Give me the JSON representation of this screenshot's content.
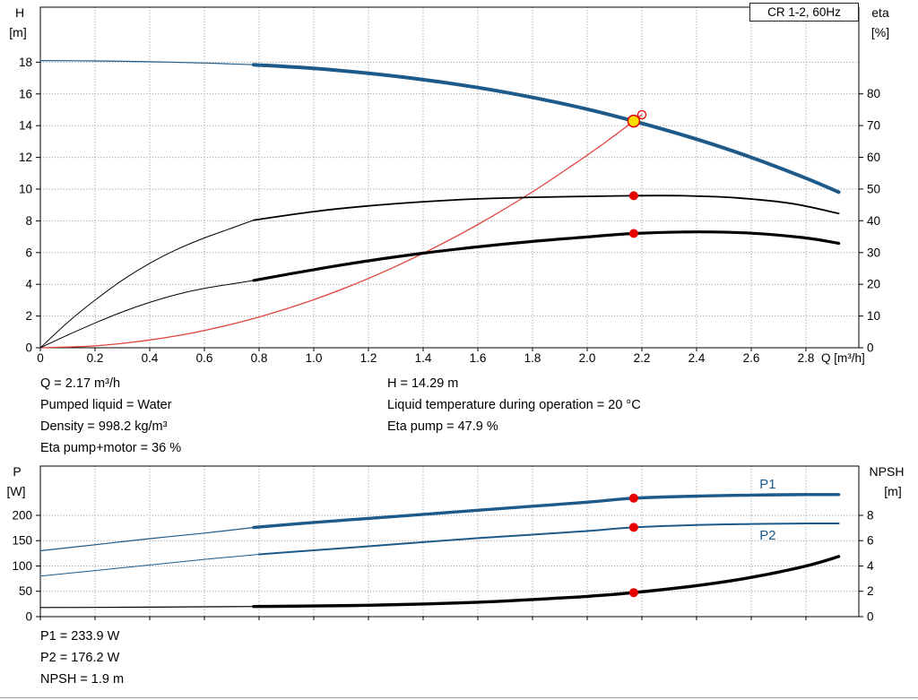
{
  "header": {
    "model": "CR 1-2, 60Hz"
  },
  "colors": {
    "curve_blue": "#1d5a8a",
    "curve_black": "#000000",
    "system_red": "#e0433a",
    "dot_red": "#e60000",
    "duty_yellow": "#ffdf00"
  },
  "info_top_left": [
    "Q = 2.17 m³/h",
    "Pumped liquid = Water",
    "Density = 998.2 kg/m³",
    "Eta pump+motor = 36 %"
  ],
  "info_top_right": [
    "H = 14.29 m",
    "Liquid temperature during operation = 20 °C",
    "Eta pump = 47.9 %"
  ],
  "info_bottom": [
    "P1 = 233.9 W",
    "P2 = 176.2 W",
    "NPSH = 1.9 m"
  ],
  "chart_data": [
    {
      "id": "chart-top",
      "type": "line",
      "title": "CR 1-2, 60Hz",
      "x_axis": {
        "label": "Q [m³/h]",
        "min": 0,
        "max": 2.9934,
        "ticks": [
          0,
          0.2,
          0.4,
          0.6,
          0.8,
          1.0,
          1.2,
          1.4,
          1.6,
          1.8,
          2.0,
          2.2,
          2.4,
          2.6,
          2.8
        ],
        "tick_labels": [
          "0",
          "0.2",
          "0.4",
          "0.6",
          "0.8",
          "1.0",
          "1.2",
          "1.4",
          "1.6",
          "1.8",
          "2.0",
          "2.2",
          "2.4",
          "2.6",
          "2.8"
        ]
      },
      "y_left": {
        "title": [
          "H",
          "[m]"
        ],
        "min": 0,
        "max": 21.47,
        "ticks": [
          0,
          2,
          4,
          6,
          8,
          10,
          12,
          14,
          16,
          18
        ],
        "tick_labels": [
          "0",
          "2",
          "4",
          "6",
          "8",
          "10",
          "12",
          "14",
          "16",
          "18"
        ]
      },
      "y_right": {
        "title": [
          "eta",
          "[%]"
        ],
        "min": 0,
        "max": 107.3,
        "ticks": [
          0,
          10,
          20,
          30,
          40,
          50,
          60,
          70,
          80
        ],
        "tick_labels": [
          "0",
          "10",
          "20",
          "30",
          "40",
          "50",
          "60",
          "70",
          "80"
        ]
      },
      "series": [
        {
          "name": "system-curve",
          "axis": "left",
          "color": "#e0433a",
          "width": 1.3,
          "points": [
            [
              0,
              0
            ],
            [
              0.2,
              0.12
            ],
            [
              0.4,
              0.49
            ],
            [
              0.6,
              1.09
            ],
            [
              0.8,
              1.94
            ],
            [
              1,
              3.03
            ],
            [
              1.2,
              4.37
            ],
            [
              1.4,
              5.95
            ],
            [
              1.6,
              7.77
            ],
            [
              1.8,
              9.83
            ],
            [
              2,
              12.14
            ],
            [
              2.1,
              13.38
            ],
            [
              2.2,
              14.69
            ]
          ]
        },
        {
          "name": "eta-pump-curve-lead",
          "axis": "right",
          "color": "#000000",
          "width": 1,
          "points": [
            [
              0,
              0
            ],
            [
              0.1,
              8
            ],
            [
              0.2,
              15
            ],
            [
              0.3,
              21.3
            ],
            [
              0.4,
              26.6
            ],
            [
              0.5,
              31
            ],
            [
              0.6,
              34.6
            ],
            [
              0.7,
              37.7
            ],
            [
              0.78,
              40.2
            ]
          ]
        },
        {
          "name": "eta-pump-curve",
          "axis": "right",
          "color": "#000000",
          "width": 1.8,
          "points": [
            [
              0.78,
              40.2
            ],
            [
              1,
              42.9
            ],
            [
              1.2,
              44.7
            ],
            [
              1.4,
              46
            ],
            [
              1.6,
              46.9
            ],
            [
              1.8,
              47.4
            ],
            [
              2,
              47.7
            ],
            [
              2.17,
              47.9
            ],
            [
              2.35,
              47.9
            ],
            [
              2.55,
              47.2
            ],
            [
              2.75,
              45.4
            ],
            [
              2.92,
              42.3
            ]
          ]
        },
        {
          "name": "eta-pump-motor-curve-lead",
          "axis": "right",
          "color": "#000000",
          "width": 1,
          "points": [
            [
              0,
              0
            ],
            [
              0.1,
              4
            ],
            [
              0.2,
              7.8
            ],
            [
              0.3,
              11.3
            ],
            [
              0.4,
              14.3
            ],
            [
              0.5,
              16.8
            ],
            [
              0.6,
              18.7
            ],
            [
              0.7,
              20.1
            ],
            [
              0.78,
              21.2
            ]
          ]
        },
        {
          "name": "eta-pump-motor-curve",
          "axis": "right",
          "color": "#000000",
          "width": 3.2,
          "points": [
            [
              0.78,
              21.2
            ],
            [
              1,
              24.6
            ],
            [
              1.2,
              27.4
            ],
            [
              1.4,
              29.8
            ],
            [
              1.6,
              31.8
            ],
            [
              1.8,
              33.5
            ],
            [
              2,
              34.9
            ],
            [
              2.17,
              36
            ],
            [
              2.4,
              36.5
            ],
            [
              2.6,
              36.1
            ],
            [
              2.8,
              34.6
            ],
            [
              2.92,
              32.9
            ]
          ]
        },
        {
          "name": "head-curve-lead",
          "axis": "left",
          "color": "#1d5a8a",
          "width": 1.2,
          "points": [
            [
              0,
              18.1
            ],
            [
              0.2,
              18.08
            ],
            [
              0.4,
              18.03
            ],
            [
              0.6,
              17.95
            ],
            [
              0.78,
              17.84
            ]
          ]
        },
        {
          "name": "head-curve",
          "axis": "left",
          "color": "#1d5a8a",
          "width": 4,
          "points": [
            [
              0.78,
              17.84
            ],
            [
              1,
              17.61
            ],
            [
              1.2,
              17.3
            ],
            [
              1.4,
              16.9
            ],
            [
              1.6,
              16.4
            ],
            [
              1.8,
              15.78
            ],
            [
              2,
              15.04
            ],
            [
              2.17,
              14.29
            ],
            [
              2.4,
              13.15
            ],
            [
              2.6,
              12
            ],
            [
              2.8,
              10.69
            ],
            [
              2.92,
              9.81
            ]
          ]
        }
      ],
      "markers": [
        {
          "name": "duty-point-outline",
          "q": 2.2,
          "v": 14.69,
          "axis": "left",
          "r": 4.5,
          "fill": "none",
          "stroke": "#e60000",
          "sw": 1.3
        },
        {
          "name": "duty-point",
          "q": 2.17,
          "v": 14.29,
          "axis": "left",
          "r": 6.5,
          "fill": "#ffdf00",
          "stroke": "#e60000",
          "sw": 1.5
        },
        {
          "name": "eta-pump-point",
          "q": 2.17,
          "v": 47.9,
          "axis": "right",
          "r": 5,
          "fill": "#e60000",
          "stroke": "none",
          "sw": 0
        },
        {
          "name": "eta-pump-motor-point",
          "q": 2.17,
          "v": 36,
          "axis": "right",
          "r": 5,
          "fill": "#e60000",
          "stroke": "none",
          "sw": 0
        }
      ],
      "labels": []
    },
    {
      "id": "chart-bottom",
      "type": "line",
      "x_axis": {
        "label": "",
        "min": 0,
        "max": 2.9934,
        "ticks": [
          0,
          0.2,
          0.4,
          0.6,
          0.8,
          1.0,
          1.2,
          1.4,
          1.6,
          1.8,
          2.0,
          2.2,
          2.4,
          2.6,
          2.8
        ],
        "tick_labels": []
      },
      "y_left": {
        "title": [
          "P",
          "[W]"
        ],
        "min": 0,
        "max": 297.3,
        "ticks": [
          0,
          50,
          100,
          150,
          200
        ],
        "tick_labels": [
          "0",
          "50",
          "100",
          "150",
          "200"
        ]
      },
      "y_right": {
        "title": [
          "NPSH",
          "[m]"
        ],
        "min": 0,
        "max": 11.893,
        "ticks": [
          0,
          2,
          4,
          6,
          8
        ],
        "tick_labels": [
          "0",
          "2",
          "4",
          "6",
          "8"
        ]
      },
      "series": [
        {
          "name": "p1-curve-lead",
          "axis": "left",
          "color": "#1d5a8a",
          "width": 1.2,
          "points": [
            [
              0,
              130
            ],
            [
              0.2,
              142
            ],
            [
              0.4,
              154
            ],
            [
              0.6,
              165
            ],
            [
              0.78,
              176
            ]
          ]
        },
        {
          "name": "p1-curve",
          "axis": "left",
          "color": "#1d5a8a",
          "width": 3.4,
          "points": [
            [
              0.78,
              176
            ],
            [
              1,
              186
            ],
            [
              1.2,
              194
            ],
            [
              1.4,
              202
            ],
            [
              1.6,
              210
            ],
            [
              1.8,
              218
            ],
            [
              2,
              226
            ],
            [
              2.17,
              233.9
            ],
            [
              2.4,
              238
            ],
            [
              2.6,
              240
            ],
            [
              2.8,
              241
            ],
            [
              2.92,
              241
            ]
          ]
        },
        {
          "name": "p2-curve-lead",
          "axis": "left",
          "color": "#1d5a8a",
          "width": 1,
          "points": [
            [
              0,
              80
            ],
            [
              0.2,
              91
            ],
            [
              0.4,
              102
            ],
            [
              0.6,
              113
            ],
            [
              0.8,
              123
            ]
          ]
        },
        {
          "name": "p2-curve",
          "axis": "left",
          "color": "#1d5a8a",
          "width": 2,
          "points": [
            [
              0.8,
              123
            ],
            [
              1,
              131
            ],
            [
              1.2,
              139
            ],
            [
              1.4,
              147
            ],
            [
              1.6,
              155
            ],
            [
              1.8,
              162
            ],
            [
              2,
              169
            ],
            [
              2.17,
              176.2
            ],
            [
              2.4,
              181
            ],
            [
              2.6,
              183
            ],
            [
              2.8,
              184
            ],
            [
              2.92,
              184
            ]
          ]
        },
        {
          "name": "npsh-curve-lead",
          "axis": "right",
          "color": "#000000",
          "width": 1.2,
          "points": [
            [
              0,
              0.72
            ],
            [
              0.3,
              0.74
            ],
            [
              0.6,
              0.78
            ],
            [
              0.78,
              0.8
            ]
          ]
        },
        {
          "name": "npsh-curve",
          "axis": "right",
          "color": "#000000",
          "width": 3.4,
          "points": [
            [
              0.78,
              0.8
            ],
            [
              1,
              0.84
            ],
            [
              1.2,
              0.9
            ],
            [
              1.4,
              1
            ],
            [
              1.6,
              1.14
            ],
            [
              1.8,
              1.35
            ],
            [
              2,
              1.6
            ],
            [
              2.17,
              1.9
            ],
            [
              2.4,
              2.45
            ],
            [
              2.6,
              3.1
            ],
            [
              2.8,
              4
            ],
            [
              2.92,
              4.75
            ]
          ]
        }
      ],
      "markers": [
        {
          "name": "p1-point",
          "q": 2.17,
          "v": 233.9,
          "axis": "left",
          "r": 5,
          "fill": "#e60000",
          "stroke": "none",
          "sw": 0
        },
        {
          "name": "p2-point",
          "q": 2.17,
          "v": 176.2,
          "axis": "left",
          "r": 5,
          "fill": "#e60000",
          "stroke": "none",
          "sw": 0
        },
        {
          "name": "npsh-point",
          "q": 2.17,
          "v": 1.9,
          "axis": "right",
          "r": 5,
          "fill": "#e60000",
          "stroke": "none",
          "sw": 0
        }
      ],
      "labels": [
        {
          "name": "p1-label",
          "text": "P1",
          "q": 2.63,
          "v": 253,
          "axis": "left",
          "color": "#1d5a8a"
        },
        {
          "name": "p2-label",
          "text": "P2",
          "q": 2.63,
          "v": 152,
          "axis": "left",
          "color": "#1d5a8a"
        }
      ]
    }
  ]
}
